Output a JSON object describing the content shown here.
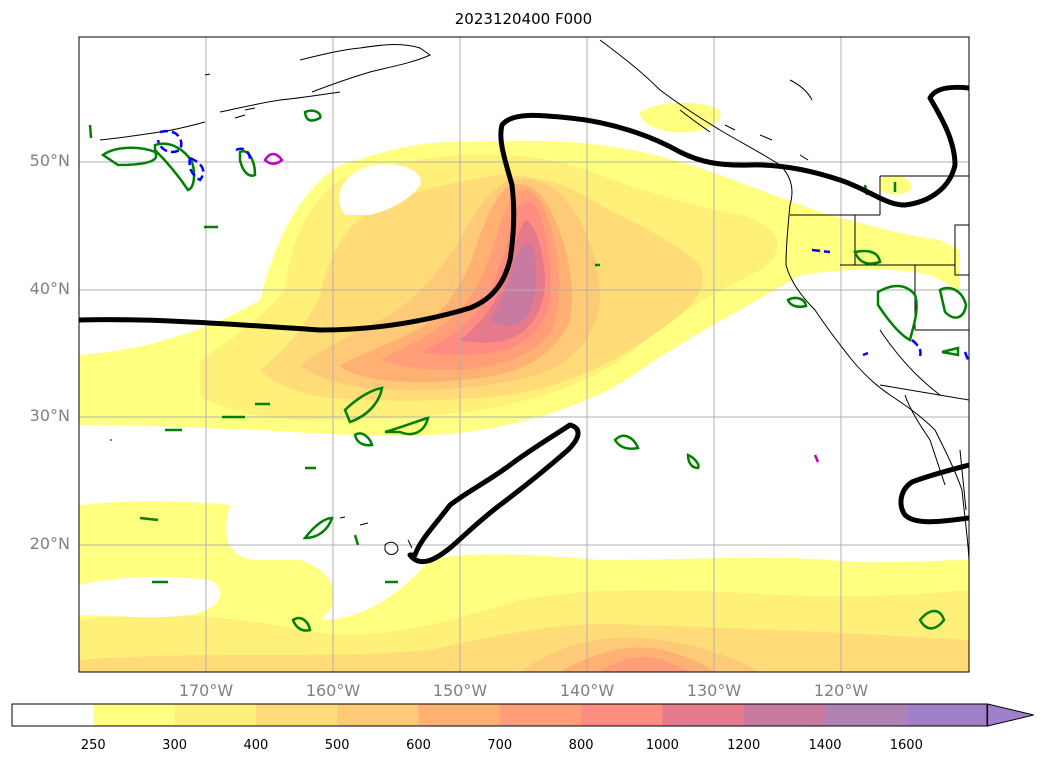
{
  "title": "2023120400 F000",
  "lat_labels": [
    "50°N",
    "40°N",
    "30°N",
    "20°N"
  ],
  "lon_labels": [
    "170°W",
    "160°W",
    "150°W",
    "140°W",
    "130°W",
    "120°W"
  ],
  "colorbar": {
    "labels": [
      "250",
      "300",
      "400",
      "500",
      "600",
      "700",
      "800",
      "1000",
      "1200",
      "1400",
      "1600"
    ],
    "colors": [
      "#ffffff",
      "#ffff80",
      "#fff07a",
      "#ffdc78",
      "#ffca78",
      "#ffb073",
      "#ff9e78",
      "#ff8c80",
      "#e57a8c",
      "#c87aa0",
      "#b082b4",
      "#a080c8"
    ],
    "extend": "max"
  },
  "colors": {
    "jet_contour": "#000000",
    "positive_contour": "#008000",
    "negative_contour": "#0000ff",
    "magenta_contour": "#c000c0",
    "grid": "#b0b0b0",
    "coastline": "#000000"
  }
}
